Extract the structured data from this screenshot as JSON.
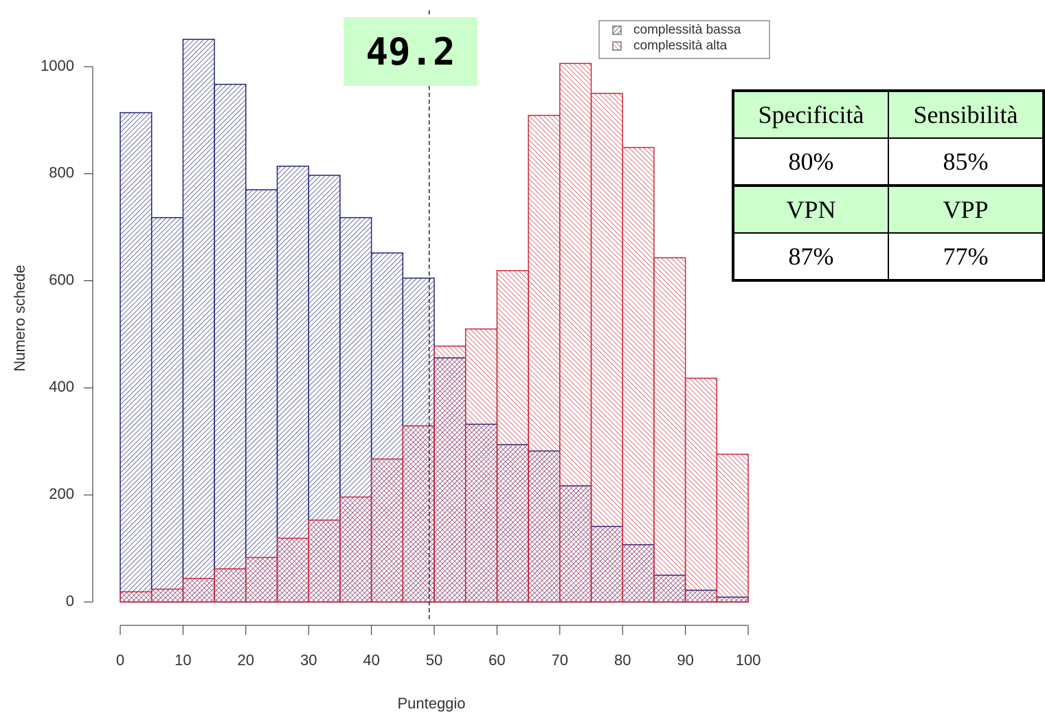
{
  "chart_data": {
    "type": "histogram",
    "xlabel": "Punteggio",
    "ylabel": "Numero schede",
    "bins": [
      0,
      5,
      10,
      15,
      20,
      25,
      30,
      35,
      40,
      45,
      50,
      55,
      60,
      65,
      70,
      75,
      80,
      85,
      90,
      95,
      100
    ],
    "series": [
      {
        "name": "complessità bassa",
        "color": "#23237a",
        "values": [
          914,
          718,
          1051,
          967,
          770,
          814,
          797,
          718,
          652,
          605,
          456,
          332,
          294,
          282,
          217,
          141,
          107,
          50,
          22,
          9
        ]
      },
      {
        "name": "complessità alta",
        "color": "#c8283c",
        "values": [
          19,
          24,
          44,
          62,
          83,
          119,
          153,
          196,
          267,
          329,
          478,
          510,
          619,
          909,
          1006,
          950,
          849,
          643,
          418,
          276
        ]
      }
    ],
    "xlim": [
      0,
      100
    ],
    "ylim": [
      0,
      1000
    ],
    "xticks": [
      0,
      10,
      20,
      30,
      40,
      50,
      60,
      70,
      80,
      90,
      100
    ],
    "yticks": [
      0,
      200,
      400,
      600,
      800,
      1000
    ],
    "cutoff": 49.2,
    "legend": "top-right"
  },
  "table": {
    "rows": [
      [
        "Specificità",
        "Sensibilità"
      ],
      [
        "80%",
        "85%"
      ],
      [
        "VPN",
        "VPP"
      ],
      [
        "87%",
        "77%"
      ]
    ]
  }
}
